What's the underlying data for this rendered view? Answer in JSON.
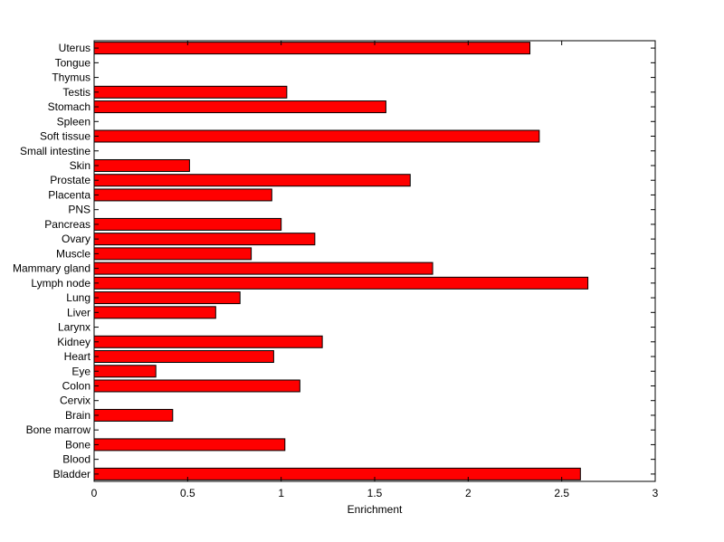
{
  "chart_data": {
    "type": "bar",
    "orientation": "horizontal",
    "xlabel": "Enrichment",
    "ylabel": "",
    "title": "",
    "xlim": [
      0,
      3
    ],
    "xticks": [
      0,
      0.5,
      1,
      1.5,
      2,
      2.5,
      3
    ],
    "xtick_labels": [
      "0",
      "0.5",
      "1",
      "1.5",
      "2",
      "2.5",
      "3"
    ],
    "grid": false,
    "bar_color": "#ff0000",
    "bar_edge_color": "#000000",
    "categories": [
      "Bladder",
      "Blood",
      "Bone",
      "Bone marrow",
      "Brain",
      "Cervix",
      "Colon",
      "Eye",
      "Heart",
      "Kidney",
      "Larynx",
      "Liver",
      "Lung",
      "Lymph node",
      "Mammary gland",
      "Muscle",
      "Ovary",
      "Pancreas",
      "PNS",
      "Placenta",
      "Prostate",
      "Skin",
      "Small intestine",
      "Soft tissue",
      "Spleen",
      "Stomach",
      "Testis",
      "Thymus",
      "Tongue",
      "Uterus"
    ],
    "values": [
      2.6,
      0,
      1.02,
      0,
      0.42,
      0,
      1.1,
      0.33,
      0.96,
      1.22,
      0,
      0.65,
      0.78,
      2.64,
      1.81,
      0.84,
      1.18,
      1.0,
      0,
      0.95,
      1.69,
      0.51,
      0,
      2.38,
      0,
      1.56,
      1.03,
      0,
      0,
      2.33
    ]
  }
}
